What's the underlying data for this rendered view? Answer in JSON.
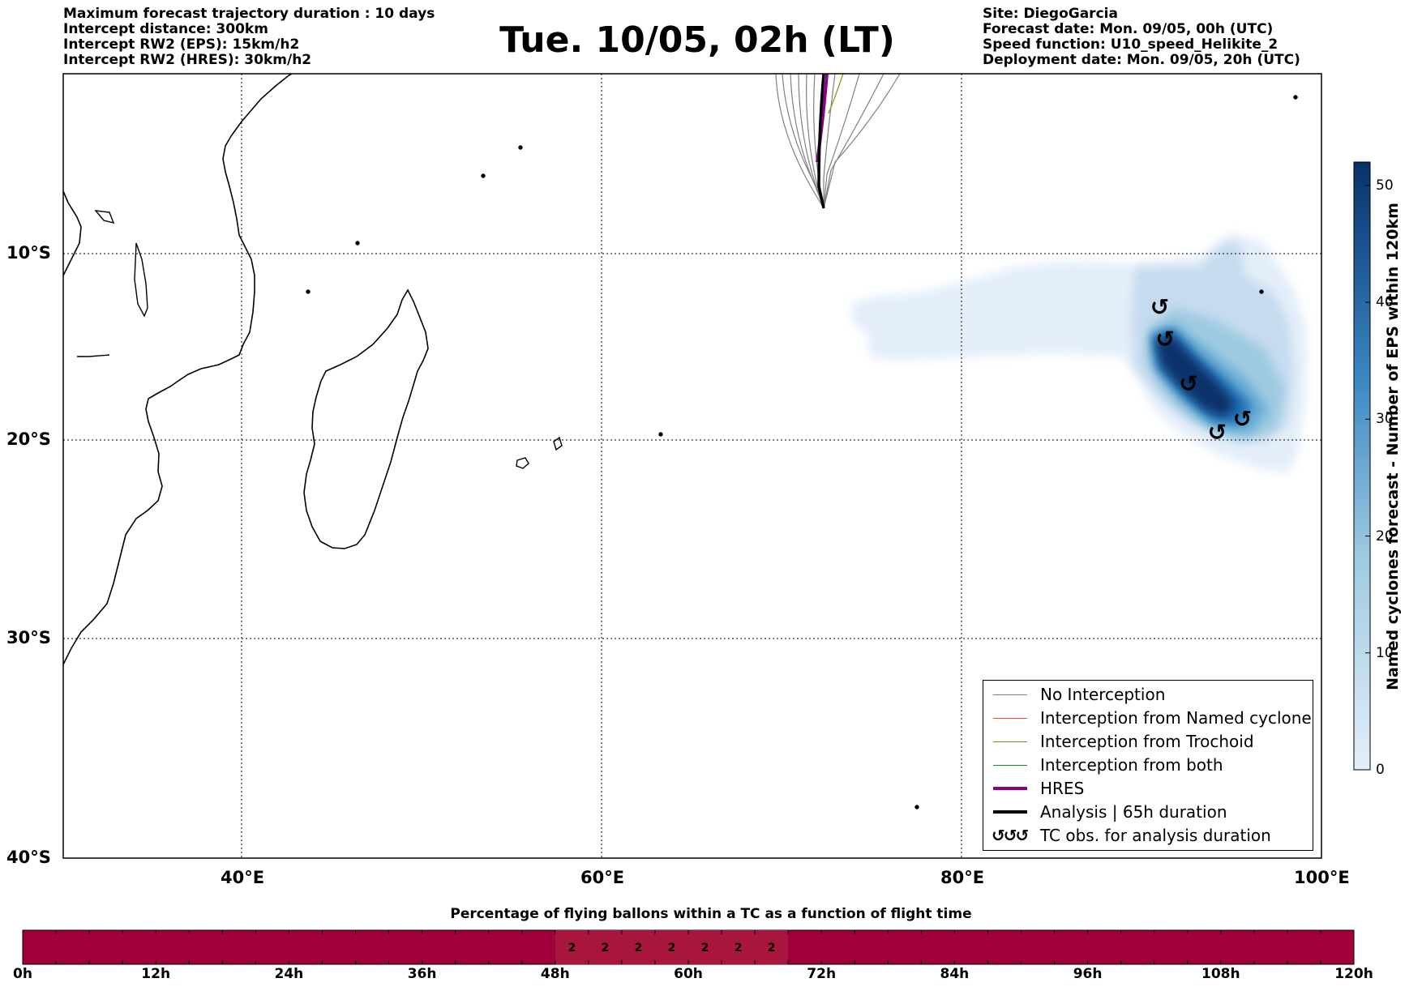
{
  "header_left": [
    "Maximum forecast trajectory duration : 10 days",
    "Intercept distance: 300km",
    "Intercept RW2 (EPS):  15km/h2",
    "Intercept RW2 (HRES): 30km/h2"
  ],
  "title": "Tue. 10/05, 02h (LT)",
  "header_right": [
    "Site: DiegoGarcia",
    "Forecast date: Mon. 09/05, 00h (UTC)",
    "Speed function: U10_speed_Helikite_2",
    "Deployment date: Mon. 09/05, 20h (UTC)"
  ],
  "map": {
    "lon_range": [
      30,
      100
    ],
    "lat_range": [
      -40,
      -1
    ],
    "lat_labels": [
      "10°S",
      "20°S",
      "30°S",
      "40°S"
    ],
    "lon_labels": [
      "40°E",
      "60°E",
      "80°E",
      "100°E"
    ],
    "grid": "dotted",
    "cyclone_obs_lonlat": [
      [
        91,
        -12.9
      ],
      [
        91.3,
        -14.6
      ],
      [
        92.6,
        -17.0
      ],
      [
        94.2,
        -19.6
      ],
      [
        95.6,
        -18.9
      ]
    ]
  },
  "colorbar": {
    "label": "Named cyclones forecast - Number of EPS within 120km",
    "ticks": [
      "0",
      "10",
      "20",
      "30",
      "40",
      "50"
    ],
    "range": [
      0,
      52
    ],
    "color_low": "#e3eef9",
    "color_high": "#08306b"
  },
  "legend": {
    "items": [
      {
        "label": "No Interception",
        "color": "#808080"
      },
      {
        "label": "Interception from Named cyclone",
        "color": "#e8501a"
      },
      {
        "label": "Interception from Trochoid",
        "color": "#8b7d1a"
      },
      {
        "label": "Interception from both",
        "color": "#1a8c1a"
      },
      {
        "label": "HRES",
        "color": "#8b008b"
      },
      {
        "label": "Analysis | 65h duration",
        "color": "#000000"
      },
      {
        "label": "TC obs. for analysis duration",
        "color": "#000000",
        "icon": "cyclone-symbol-icon"
      }
    ]
  },
  "timeline": {
    "title": "Percentage of flying ballons within a TC as a function of flight time",
    "ticks": [
      "0h",
      "12h",
      "24h",
      "36h",
      "48h",
      "60h",
      "72h",
      "84h",
      "96h",
      "108h",
      "120h"
    ],
    "bar_color": "#a0003c",
    "highlight_color": "#a8163f",
    "values_start_hour": 48,
    "step_hours": 3,
    "values": [
      "2",
      "2",
      "2",
      "2",
      "2",
      "2",
      "2"
    ]
  }
}
